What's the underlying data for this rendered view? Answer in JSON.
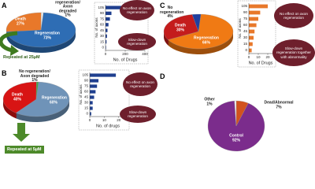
{
  "chart_data": [
    {
      "type": "pie",
      "panel": "A",
      "categories": [
        "Regeneration",
        "Death",
        "No regeneration/ Axon degraded"
      ],
      "values": [
        73,
        27,
        1
      ],
      "value_labels": [
        "73%",
        "27%",
        "1%"
      ],
      "colors": [
        "#2e6db4",
        "#e8782a",
        "#f2f2f2"
      ],
      "annotation": "Repeated at 25µM"
    },
    {
      "type": "hbar",
      "categories": [
        "105",
        "90",
        "75",
        "60",
        "45",
        "30",
        "15",
        "0"
      ],
      "values": [
        300,
        60,
        45,
        30,
        20,
        15,
        10,
        5
      ],
      "color": "#1f3f8f",
      "xlim": [
        0,
        400
      ],
      "xticks": [
        0,
        200,
        400
      ],
      "xlabel": "No. of Drugs",
      "ylabel": "No. of axons",
      "annotations": [
        "No effect on axon regeneration",
        "Slow-down regeneration"
      ]
    },
    {
      "type": "pie",
      "panel": "B",
      "categories": [
        "Regeneration",
        "Death",
        "No regeneration/ Axon degraded"
      ],
      "values": [
        60,
        40,
        1
      ],
      "value_labels": [
        "60%",
        "40%",
        "1%"
      ],
      "colors": [
        "#6f93b8",
        "#d81414",
        "#3fa34a"
      ],
      "annotation": "Repeated at 5µM"
    },
    {
      "type": "hbar",
      "categories": [
        "105",
        "90",
        "75",
        "60",
        "45",
        "30",
        "15",
        "0"
      ],
      "values": [
        18,
        6,
        5,
        4,
        3,
        2,
        2,
        1
      ],
      "color": "#1f3f8f",
      "xlim": [
        0,
        25
      ],
      "xticks": [
        0,
        10,
        20
      ],
      "xlabel": "No. of drugs",
      "ylabel": "No. of axons",
      "annotations": [
        "No effect on axon regeneration",
        "Slow-down regeneration"
      ]
    },
    {
      "type": "pie",
      "panel": "C",
      "categories": [
        "Regeneration",
        "Death",
        "No regeneration"
      ],
      "values": [
        66,
        30,
        4
      ],
      "value_labels": [
        "66%",
        "30%",
        "4%"
      ],
      "colors": [
        "#f07a14",
        "#c41c1c",
        "#1f3f9f"
      ]
    },
    {
      "type": "hbar",
      "categories": [
        "105",
        "90",
        "75",
        "60",
        "45",
        "30",
        "15",
        "0"
      ],
      "values": [
        20,
        12,
        10,
        8,
        6,
        5,
        4,
        3
      ],
      "color": "#e8782a",
      "xlim": [
        0,
        25
      ],
      "xticks": [
        0,
        10,
        20
      ],
      "xlabel": "No. of Drugs",
      "ylabel": "No. of axons",
      "annotations": [
        "No effect on axon regeneration",
        "Slow-down regeneration together with abnormality"
      ]
    },
    {
      "type": "pie",
      "panel": "D",
      "categories": [
        "Dead/Abnormal",
        "Control",
        "Other"
      ],
      "values": [
        7,
        92,
        1
      ],
      "value_labels": [
        "7%",
        "92%",
        "1%"
      ],
      "colors": [
        "#d2521e",
        "#7b2c8c",
        "#f4f4f4"
      ]
    }
  ]
}
